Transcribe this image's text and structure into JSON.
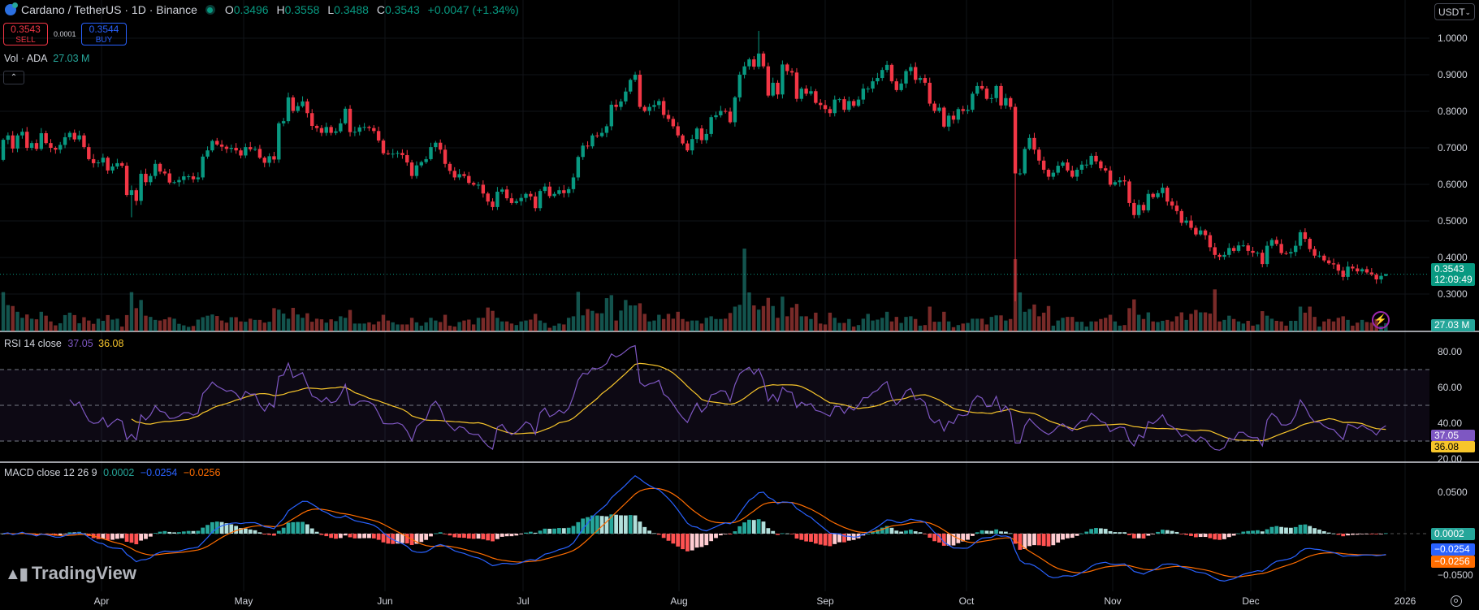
{
  "header": {
    "symbol_title": "Cardano / TetherUS · 1D · Binance",
    "ohlc": {
      "o_label": "O",
      "o": "0.3496",
      "h_label": "H",
      "h": "0.3558",
      "l_label": "L",
      "l": "0.3488",
      "c_label": "C",
      "c": "0.3543",
      "change": "+0.0047 (+1.34%)"
    },
    "sell": {
      "price": "0.3543",
      "label": "SELL"
    },
    "buy": {
      "price": "0.3544",
      "label": "BUY"
    },
    "spread": "0.0001",
    "volume_legend": {
      "label": "Vol · ADA",
      "value": "27.03 M"
    },
    "currency_select": "USDT"
  },
  "colors": {
    "up": "#089981",
    "down": "#f23645",
    "rsi": "#7e57c2",
    "rsi_ma": "#f7c52b",
    "macd": "#2962ff",
    "signal": "#ff6d00",
    "hist_up": "#26a69a",
    "hist_up_fading": "#b2dfdb",
    "hist_down": "#ff5252",
    "hist_down_fading": "#ffcdd2"
  },
  "price_axis": {
    "ticks": [
      "1.0000",
      "0.9000",
      "0.8000",
      "0.7000",
      "0.6000",
      "0.5000",
      "0.4000",
      "0.3000"
    ],
    "last_price_tag": "0.3543",
    "countdown": "12:09:49",
    "volume_tag": "27.03 M"
  },
  "rsi_pane": {
    "legend": "RSI 14 close",
    "rsi_value": "37.05",
    "ma_value": "36.08",
    "ticks": [
      "80.00",
      "60.00",
      "40.00",
      "20.00"
    ],
    "bands": [
      70,
      50,
      30
    ]
  },
  "macd_pane": {
    "legend": "MACD close 12 26 9",
    "hist_value": "0.0002",
    "macd_value": "−0.0254",
    "signal_value": "−0.0256",
    "ticks": [
      "0.0500",
      "−0.0500"
    ]
  },
  "time_axis": {
    "labels": [
      "Apr",
      "May",
      "Jun",
      "Jul",
      "Aug",
      "Sep",
      "Oct",
      "Nov",
      "Dec",
      "2026"
    ]
  },
  "branding": {
    "logo_text": "TradingView"
  },
  "chart_data": {
    "type": "candlestick",
    "interval": "1D",
    "ylim": [
      0.3,
      1.0
    ],
    "first_open": 0.667,
    "last_candle": {
      "open": 0.3496,
      "high": 0.3558,
      "low": 0.3488,
      "close": 0.3543
    },
    "wick_extremes": [
      {
        "index": 213,
        "low": 0.28
      },
      {
        "index": 159,
        "high": 1.02
      },
      {
        "index": 27,
        "low": 0.51
      }
    ],
    "closes": [
      0.722,
      0.734,
      0.698,
      0.734,
      0.744,
      0.7,
      0.713,
      0.697,
      0.74,
      0.713,
      0.7,
      0.695,
      0.708,
      0.729,
      0.741,
      0.723,
      0.734,
      0.702,
      0.669,
      0.658,
      0.66,
      0.673,
      0.638,
      0.649,
      0.658,
      0.651,
      0.571,
      0.584,
      0.555,
      0.629,
      0.606,
      0.623,
      0.656,
      0.635,
      0.63,
      0.605,
      0.606,
      0.612,
      0.622,
      0.622,
      0.614,
      0.619,
      0.676,
      0.693,
      0.719,
      0.709,
      0.703,
      0.697,
      0.7,
      0.693,
      0.679,
      0.702,
      0.696,
      0.697,
      0.673,
      0.659,
      0.677,
      0.668,
      0.767,
      0.773,
      0.838,
      0.801,
      0.814,
      0.827,
      0.795,
      0.76,
      0.754,
      0.741,
      0.757,
      0.741,
      0.745,
      0.767,
      0.807,
      0.743,
      0.744,
      0.756,
      0.757,
      0.754,
      0.746,
      0.72,
      0.685,
      0.684,
      0.684,
      0.686,
      0.68,
      0.66,
      0.623,
      0.652,
      0.661,
      0.669,
      0.702,
      0.714,
      0.695,
      0.656,
      0.637,
      0.619,
      0.628,
      0.623,
      0.604,
      0.599,
      0.599,
      0.575,
      0.553,
      0.538,
      0.58,
      0.586,
      0.562,
      0.549,
      0.554,
      0.563,
      0.574,
      0.567,
      0.535,
      0.582,
      0.594,
      0.568,
      0.574,
      0.584,
      0.576,
      0.587,
      0.619,
      0.675,
      0.706,
      0.704,
      0.734,
      0.732,
      0.741,
      0.759,
      0.818,
      0.812,
      0.827,
      0.854,
      0.886,
      0.9,
      0.812,
      0.801,
      0.812,
      0.817,
      0.828,
      0.79,
      0.779,
      0.759,
      0.734,
      0.712,
      0.693,
      0.724,
      0.753,
      0.721,
      0.738,
      0.784,
      0.789,
      0.801,
      0.799,
      0.77,
      0.838,
      0.9,
      0.923,
      0.942,
      0.922,
      0.958,
      0.923,
      0.843,
      0.878,
      0.846,
      0.928,
      0.91,
      0.906,
      0.834,
      0.862,
      0.848,
      0.855,
      0.823,
      0.817,
      0.806,
      0.795,
      0.832,
      0.833,
      0.804,
      0.828,
      0.815,
      0.832,
      0.862,
      0.862,
      0.882,
      0.891,
      0.913,
      0.927,
      0.882,
      0.858,
      0.876,
      0.91,
      0.921,
      0.886,
      0.891,
      0.878,
      0.821,
      0.801,
      0.81,
      0.758,
      0.788,
      0.777,
      0.806,
      0.801,
      0.804,
      0.848,
      0.869,
      0.862,
      0.834,
      0.836,
      0.869,
      0.816,
      0.836,
      0.812,
      0.63,
      0.63,
      0.697,
      0.727,
      0.695,
      0.665,
      0.64,
      0.621,
      0.632,
      0.651,
      0.66,
      0.638,
      0.621,
      0.64,
      0.654,
      0.654,
      0.678,
      0.663,
      0.644,
      0.638,
      0.599,
      0.606,
      0.611,
      0.608,
      0.549,
      0.516,
      0.544,
      0.529,
      0.574,
      0.565,
      0.576,
      0.591,
      0.553,
      0.542,
      0.527,
      0.495,
      0.501,
      0.481,
      0.463,
      0.474,
      0.461,
      0.428,
      0.407,
      0.402,
      0.407,
      0.426,
      0.418,
      0.433,
      0.433,
      0.418,
      0.413,
      0.413,
      0.382,
      0.432,
      0.448,
      0.437,
      0.412,
      0.411,
      0.415,
      0.432,
      0.469,
      0.451,
      0.423,
      0.405,
      0.405,
      0.392,
      0.384,
      0.381,
      0.364,
      0.347,
      0.375,
      0.37,
      0.362,
      0.368,
      0.359,
      0.353,
      0.34,
      0.3496,
      0.3543
    ],
    "volumes_millions": [
      130,
      87,
      84,
      65,
      45,
      56,
      42,
      40,
      65,
      52,
      33,
      20,
      27,
      54,
      62,
      54,
      27,
      47,
      36,
      25,
      42,
      35,
      54,
      39,
      42,
      16,
      54,
      130,
      77,
      104,
      52,
      48,
      38,
      36,
      40,
      47,
      42,
      25,
      20,
      15,
      18,
      39,
      47,
      52,
      56,
      51,
      36,
      29,
      47,
      47,
      33,
      32,
      42,
      38,
      38,
      29,
      32,
      77,
      72,
      59,
      42,
      78,
      56,
      45,
      60,
      32,
      42,
      40,
      29,
      40,
      34,
      50,
      45,
      71,
      26,
      26,
      26,
      30,
      23,
      33,
      55,
      36,
      30,
      23,
      23,
      23,
      45,
      30,
      19,
      30,
      45,
      36,
      31,
      55,
      19,
      16,
      31,
      36,
      39,
      23,
      45,
      45,
      79,
      68,
      45,
      33,
      33,
      26,
      21,
      33,
      36,
      39,
      58,
      36,
      28,
      12,
      19,
      26,
      23,
      45,
      50,
      131,
      53,
      74,
      68,
      60,
      60,
      110,
      120,
      36,
      69,
      104,
      86,
      86,
      93,
      58,
      33,
      36,
      55,
      41,
      58,
      42,
      65,
      41,
      33,
      36,
      36,
      26,
      45,
      50,
      41,
      41,
      42,
      61,
      82,
      88,
      274,
      129,
      86,
      72,
      84,
      111,
      84,
      45,
      115,
      50,
      79,
      91,
      50,
      50,
      41,
      62,
      26,
      23,
      62,
      45,
      28,
      28,
      41,
      16,
      21,
      42,
      58,
      36,
      39,
      45,
      65,
      33,
      48,
      28,
      48,
      50,
      41,
      19,
      21,
      82,
      32,
      32,
      65,
      33,
      14,
      21,
      26,
      28,
      42,
      42,
      42,
      23,
      48,
      53,
      53,
      36,
      41,
      239,
      129,
      65,
      74,
      89,
      50,
      62,
      84,
      19,
      36,
      45,
      48,
      48,
      32,
      32,
      16,
      33,
      33,
      41,
      45,
      55,
      33,
      19,
      21,
      77,
      106,
      55,
      41,
      63,
      33,
      31,
      35,
      38,
      33,
      50,
      63,
      38,
      58,
      71,
      63,
      63,
      59,
      139,
      33,
      38,
      52,
      41,
      33,
      26,
      35,
      19,
      23,
      67,
      52,
      42,
      35,
      33,
      19,
      35,
      35,
      82,
      62,
      82,
      48,
      16,
      33,
      41,
      33,
      45,
      50,
      38,
      19,
      29,
      38,
      31,
      29,
      41,
      18,
      27.03
    ]
  }
}
